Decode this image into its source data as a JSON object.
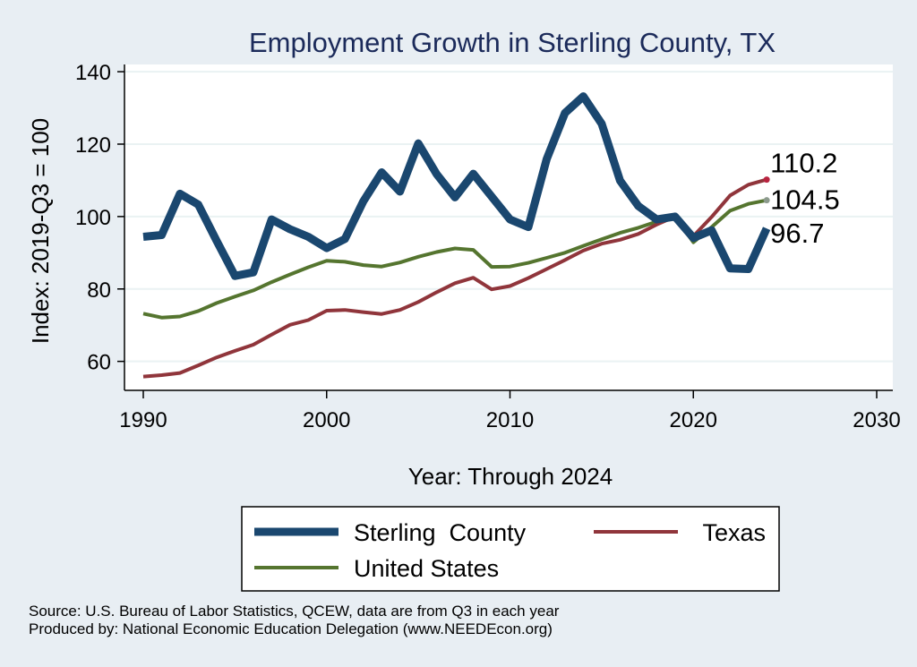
{
  "chart_data": {
    "type": "line",
    "title": "Employment Growth in Sterling County, TX",
    "xlabel": "Year: Through 2024",
    "ylabel": "Index: 2019-Q3 = 100",
    "xlim": [
      1990,
      2030
    ],
    "ylim": [
      52,
      142
    ],
    "x_ticks": [
      1990,
      2000,
      2010,
      2020,
      2030
    ],
    "y_ticks": [
      60,
      80,
      100,
      120,
      140
    ],
    "grid": true,
    "x": [
      1990,
      1991,
      1992,
      1993,
      1994,
      1995,
      1996,
      1997,
      1998,
      1999,
      2000,
      2001,
      2002,
      2003,
      2004,
      2005,
      2006,
      2007,
      2008,
      2009,
      2010,
      2011,
      2012,
      2013,
      2014,
      2015,
      2016,
      2017,
      2018,
      2019,
      2020,
      2021,
      2022,
      2023,
      2024
    ],
    "series": [
      {
        "name": "Sterling  County",
        "color": "#1a476f",
        "values": [
          94.4,
          94.9,
          106.3,
          103.3,
          93.3,
          83.6,
          84.6,
          99.2,
          96.5,
          94.4,
          91.3,
          93.8,
          104.2,
          112.2,
          106.9,
          120.2,
          111.7,
          105.3,
          111.8,
          105.5,
          99.2,
          97.1,
          115.9,
          128.6,
          133.2,
          125.6,
          109.9,
          102.9,
          99.2,
          100.0,
          94.1,
          96.2,
          85.7,
          85.5,
          96.7
        ],
        "end_label": "96.7"
      },
      {
        "name": "Texas",
        "color": "#90353b",
        "values": [
          55.8,
          56.2,
          56.8,
          58.9,
          61.1,
          62.9,
          64.6,
          67.4,
          70.1,
          71.4,
          74.0,
          74.2,
          73.6,
          73.1,
          74.2,
          76.4,
          79.1,
          81.6,
          83.1,
          79.9,
          80.8,
          83.0,
          85.5,
          88.0,
          90.6,
          92.5,
          93.6,
          95.2,
          97.8,
          100.0,
          94.6,
          99.9,
          105.8,
          108.8,
          110.2
        ],
        "end_label": "110.2"
      },
      {
        "name": "United States",
        "color": "#55752f",
        "values": [
          73.2,
          72.1,
          72.4,
          73.9,
          76.1,
          77.9,
          79.6,
          81.9,
          84.0,
          86.0,
          87.8,
          87.5,
          86.6,
          86.2,
          87.3,
          88.9,
          90.2,
          91.2,
          90.8,
          86.1,
          86.2,
          87.2,
          88.6,
          90.0,
          91.9,
          93.7,
          95.5,
          96.9,
          98.6,
          100.0,
          92.9,
          97.1,
          101.6,
          103.5,
          104.5
        ],
        "end_label": "104.5"
      }
    ],
    "legend": {
      "placement": "bottom",
      "entries": [
        "Sterling  County",
        "Texas",
        "United States"
      ]
    }
  },
  "footnotes": {
    "source": "Source: U.S. Bureau of Labor Statistics, QCEW, data are from Q3 in each year",
    "produced_by": "Produced by: National Economic Education Delegation (www.NEEDEcon.org)"
  }
}
